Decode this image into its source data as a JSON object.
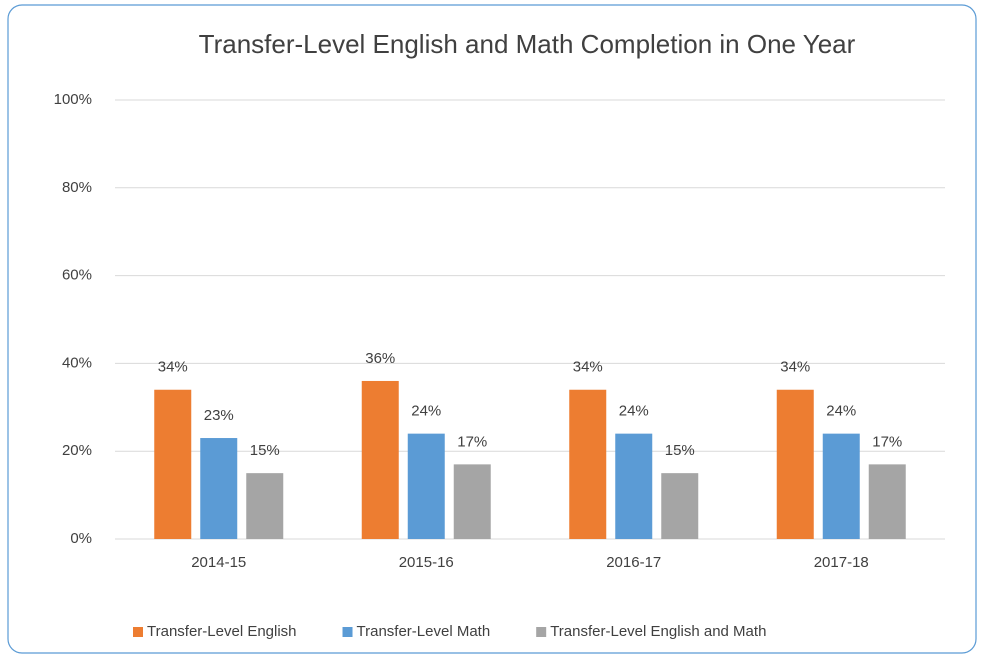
{
  "chart_data": {
    "type": "bar",
    "title": "Transfer-Level English and Math Completion in One Year",
    "categories": [
      "2014-15",
      "2015-16",
      "2016-17",
      "2017-18"
    ],
    "series": [
      {
        "name": "Transfer-Level English",
        "color": "#ed7d31",
        "values": [
          34,
          36,
          34,
          34
        ],
        "value_labels": [
          "34%",
          "36%",
          "34%",
          "34%"
        ]
      },
      {
        "name": "Transfer-Level Math",
        "color": "#5b9bd5",
        "values": [
          23,
          24,
          24,
          24
        ],
        "value_labels": [
          "23%",
          "24%",
          "24%",
          "24%"
        ]
      },
      {
        "name": "Transfer-Level English and Math",
        "color": "#a5a5a5",
        "values": [
          15,
          17,
          15,
          17
        ],
        "value_labels": [
          "15%",
          "17%",
          "15%",
          "17%"
        ]
      }
    ],
    "ylim": [
      0,
      100
    ],
    "yticks": [
      {
        "value": 0,
        "label": "0%"
      },
      {
        "value": 20,
        "label": "20%"
      },
      {
        "value": 40,
        "label": "40%"
      },
      {
        "value": 60,
        "label": "60%"
      },
      {
        "value": 80,
        "label": "80%"
      },
      {
        "value": 100,
        "label": "100%"
      }
    ],
    "grid": true,
    "legend": "bottom"
  }
}
